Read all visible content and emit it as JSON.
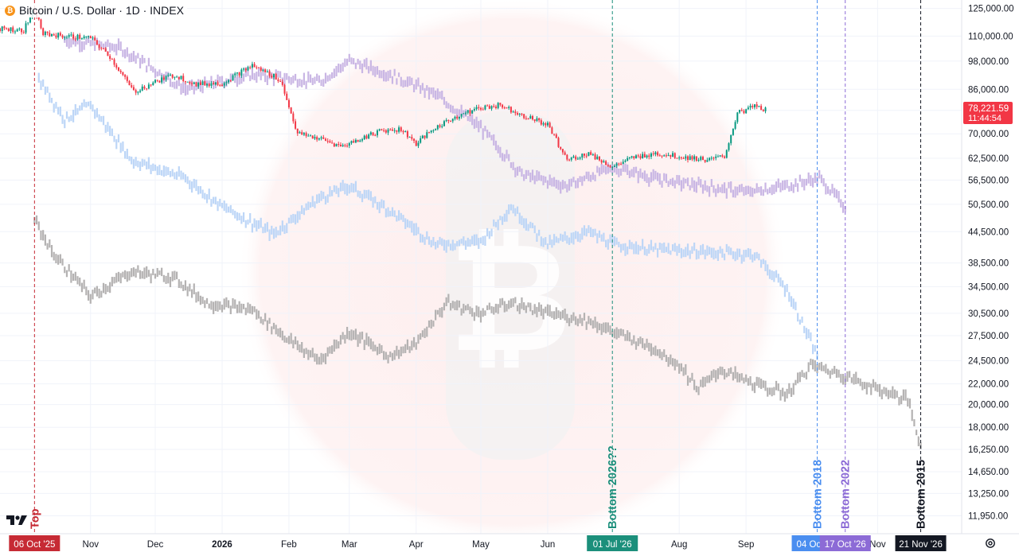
{
  "header": {
    "title": "Bitcoin / U.S. Dollar · 1D · INDEX",
    "coin_symbol": "₿"
  },
  "icons": {
    "logo": "tradingview-logo-icon",
    "settings": "gear-icon",
    "watermark": "bitcoin-watermark-icon"
  },
  "chart_data": {
    "type": "candlestick",
    "title": "Bitcoin / U.S. Dollar · 1D · INDEX",
    "y_scale": "log",
    "ylim": [
      11000,
      130000
    ],
    "y_ticks": [
      125000,
      110000,
      98000,
      86000,
      78000,
      70000,
      62500,
      56500,
      50500,
      44500,
      38500,
      34500,
      30500,
      27500,
      24500,
      22000,
      20000,
      18000,
      16250,
      14650,
      13250,
      11950
    ],
    "y_tick_labels": [
      "125,000.00",
      "110,000.00",
      "98,000.00",
      "86,000.00",
      "78,000.00",
      "70,000.00",
      "62,500.00",
      "56,500.00",
      "50,500.00",
      "44,500.00",
      "38,500.00",
      "34,500.00",
      "30,500.00",
      "27,500.00",
      "24,500.00",
      "22,000.00",
      "20,000.00",
      "18,000.00",
      "16,250.00",
      "14,650.00",
      "13,250.00",
      "11,950.00"
    ],
    "x_range": [
      "2025-09-20",
      "2026-12-10"
    ],
    "x_ticks": [
      {
        "date": "2025-11-01",
        "label": "Nov"
      },
      {
        "date": "2025-12-01",
        "label": "Dec"
      },
      {
        "date": "2026-01-01",
        "label": "2026"
      },
      {
        "date": "2026-02-01",
        "label": "Feb"
      },
      {
        "date": "2026-03-01",
        "label": "Mar"
      },
      {
        "date": "2026-04-01",
        "label": "Apr"
      },
      {
        "date": "2026-05-01",
        "label": "May"
      },
      {
        "date": "2026-06-01",
        "label": "Jun"
      },
      {
        "date": "2026-08-01",
        "label": "Aug"
      },
      {
        "date": "2026-09-01",
        "label": "Sep"
      },
      {
        "date": "2026-11-01",
        "label": "Nov"
      }
    ],
    "grid": true,
    "current_price": {
      "value": 78221.59,
      "label": "78,221.59",
      "countdown": "11:44:54",
      "color": "#f23645"
    },
    "main_series": {
      "colors": {
        "up": "#089981",
        "down": "#f23645"
      },
      "points": [
        [
          "2025-09-20",
          114000
        ],
        [
          "2025-10-01",
          113000
        ],
        [
          "2025-10-06",
          125000
        ],
        [
          "2025-10-10",
          111000
        ],
        [
          "2025-10-20",
          110000
        ],
        [
          "2025-11-01",
          109000
        ],
        [
          "2025-11-10",
          100000
        ],
        [
          "2025-11-21",
          85000
        ],
        [
          "2025-12-01",
          89000
        ],
        [
          "2025-12-10",
          92000
        ],
        [
          "2025-12-20",
          88000
        ],
        [
          "2026-01-01",
          88500
        ],
        [
          "2026-01-15",
          96000
        ],
        [
          "2026-01-28",
          90000
        ],
        [
          "2026-02-05",
          70000
        ],
        [
          "2026-02-15",
          68500
        ],
        [
          "2026-02-25",
          66000
        ],
        [
          "2026-03-05",
          68000
        ],
        [
          "2026-03-15",
          71000
        ],
        [
          "2026-03-25",
          71500
        ],
        [
          "2026-04-01",
          67000
        ],
        [
          "2026-04-10",
          72000
        ],
        [
          "2026-04-20",
          76000
        ],
        [
          "2026-05-01",
          79000
        ],
        [
          "2026-05-10",
          80000
        ],
        [
          "2026-05-20",
          76500
        ],
        [
          "2026-06-01",
          73000
        ],
        [
          "2026-06-10",
          62000
        ],
        [
          "2026-06-20",
          64000
        ],
        [
          "2026-07-01",
          60000
        ],
        [
          "2026-07-10",
          62500
        ],
        [
          "2026-07-20",
          64000
        ],
        [
          "2026-08-01",
          63000
        ],
        [
          "2026-08-15",
          62000
        ],
        [
          "2026-08-22",
          63000
        ],
        [
          "2026-08-28",
          77000
        ],
        [
          "2026-09-05",
          79500
        ],
        [
          "2026-09-10",
          78221.59
        ]
      ]
    },
    "overlays": [
      {
        "name": "",
        "color": "#c9b6e4",
        "points": [
          [
            "2025-10-20",
            108000
          ],
          [
            "2025-11-15",
            104000
          ],
          [
            "2025-12-15",
            86000
          ],
          [
            "2026-01-15",
            92000
          ],
          [
            "2026-02-15",
            89000
          ],
          [
            "2026-03-01",
            98000
          ],
          [
            "2026-03-20",
            92000
          ],
          [
            "2026-04-10",
            84000
          ],
          [
            "2026-05-01",
            72000
          ],
          [
            "2026-05-20",
            58000
          ],
          [
            "2026-06-10",
            55000
          ],
          [
            "2026-07-01",
            60000
          ],
          [
            "2026-07-20",
            57000
          ],
          [
            "2026-08-10",
            55000
          ],
          [
            "2026-09-01",
            53500
          ],
          [
            "2026-09-20",
            55000
          ],
          [
            "2026-10-05",
            57000
          ],
          [
            "2026-10-17",
            50000
          ]
        ]
      },
      {
        "name": "",
        "color": "#bdd6f7",
        "points": [
          [
            "2025-10-08",
            90000
          ],
          [
            "2025-10-20",
            75000
          ],
          [
            "2025-11-01",
            80000
          ],
          [
            "2025-11-20",
            62000
          ],
          [
            "2025-12-15",
            57000
          ],
          [
            "2026-01-01",
            50000
          ],
          [
            "2026-01-25",
            44000
          ],
          [
            "2026-02-15",
            52000
          ],
          [
            "2026-03-01",
            55000
          ],
          [
            "2026-03-20",
            49000
          ],
          [
            "2026-04-10",
            42000
          ],
          [
            "2026-05-01",
            42500
          ],
          [
            "2026-05-15",
            50000
          ],
          [
            "2026-06-01",
            42000
          ],
          [
            "2026-06-20",
            44500
          ],
          [
            "2026-07-01",
            42000
          ],
          [
            "2026-07-20",
            41000
          ],
          [
            "2026-08-15",
            40500
          ],
          [
            "2026-09-05",
            40000
          ],
          [
            "2026-09-20",
            34000
          ],
          [
            "2026-10-04",
            25000
          ]
        ]
      },
      {
        "name": "",
        "color": "#b4b2b2",
        "points": [
          [
            "2025-10-06",
            47000
          ],
          [
            "2025-10-15",
            40000
          ],
          [
            "2025-11-01",
            33000
          ],
          [
            "2025-11-20",
            37000
          ],
          [
            "2025-12-10",
            36000
          ],
          [
            "2025-12-25",
            32000
          ],
          [
            "2026-01-15",
            31000
          ],
          [
            "2026-02-01",
            27000
          ],
          [
            "2026-02-15",
            24500
          ],
          [
            "2026-03-01",
            28000
          ],
          [
            "2026-03-20",
            25000
          ],
          [
            "2026-04-01",
            26500
          ],
          [
            "2026-04-15",
            32000
          ],
          [
            "2026-05-01",
            30500
          ],
          [
            "2026-05-15",
            32000
          ],
          [
            "2026-06-01",
            30500
          ],
          [
            "2026-06-20",
            29500
          ],
          [
            "2026-07-01",
            28000
          ],
          [
            "2026-07-20",
            26000
          ],
          [
            "2026-08-01",
            24000
          ],
          [
            "2026-08-10",
            21500
          ],
          [
            "2026-08-20",
            23500
          ],
          [
            "2026-09-05",
            22000
          ],
          [
            "2026-09-20",
            21000
          ],
          [
            "2026-10-01",
            24000
          ],
          [
            "2026-10-15",
            23000
          ],
          [
            "2026-11-01",
            21500
          ],
          [
            "2026-11-15",
            20500
          ],
          [
            "2026-11-21",
            16500
          ]
        ]
      }
    ],
    "vlines": [
      {
        "date": "2025-10-06",
        "label": "Top",
        "tag": "06 Oct '25",
        "color": "#c62a34",
        "label_color": "#c62a34"
      },
      {
        "date": "2026-07-01",
        "label": "Bottom 2026??",
        "tag": "01 Jul '26",
        "color": "#1b8f7b",
        "label_color": "#1b8f7b"
      },
      {
        "date": "2026-10-04",
        "label": "Bottom 2018",
        "tag": "04 Oct '26",
        "color": "#4a8ef0",
        "label_color": "#4a8ef0"
      },
      {
        "date": "2026-10-17",
        "label": "Bottom 2022",
        "tag": "17 Oct '26",
        "color": "#8c6bd6",
        "label_color": "#8c6bd6"
      },
      {
        "date": "2026-11-21",
        "label": "Bottom 2015",
        "tag": "21 Nov '26",
        "color": "#131722",
        "label_color": "#131722"
      }
    ]
  }
}
